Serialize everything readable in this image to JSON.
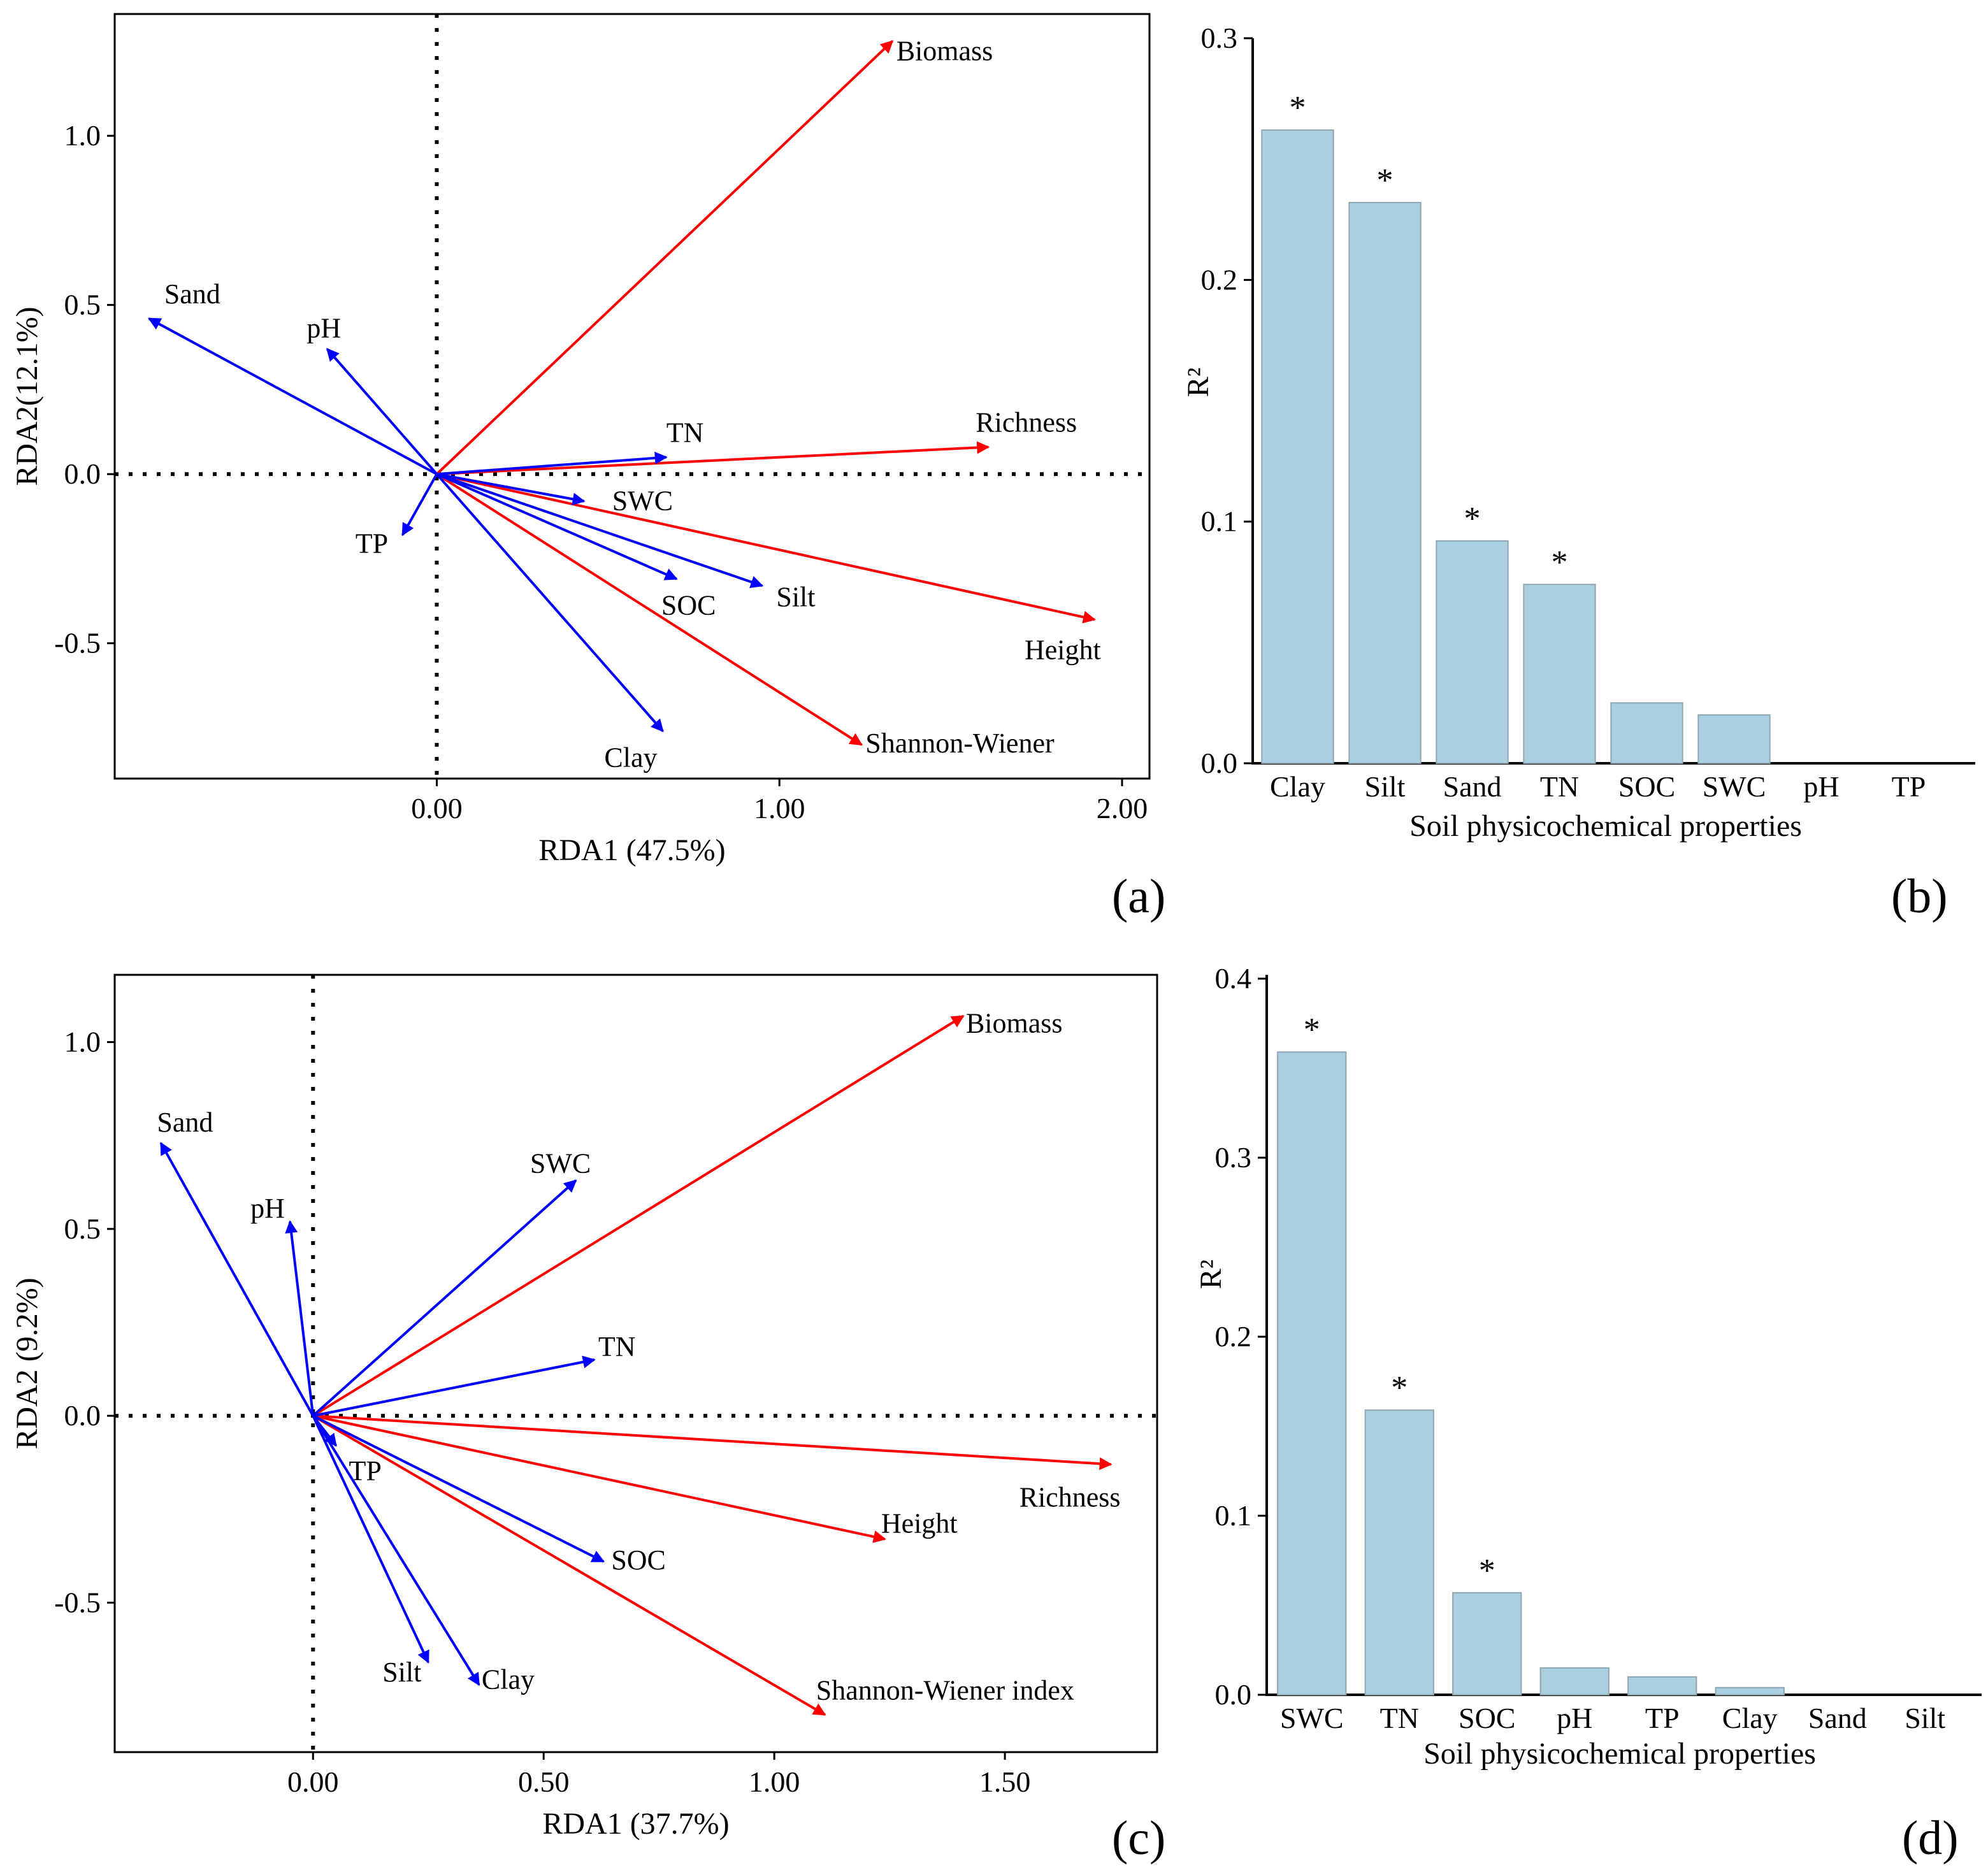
{
  "figure": {
    "panels": [
      {
        "id": "a",
        "letter": "(a)"
      },
      {
        "id": "b",
        "letter": "(b)"
      },
      {
        "id": "c",
        "letter": "(c)"
      },
      {
        "id": "d",
        "letter": "(d)"
      }
    ]
  },
  "chart_data": [
    {
      "id": "a",
      "type": "biplot",
      "xlabel": "RDA1 (47.5%)",
      "ylabel": "RDA2(12.1%)",
      "xlim": [
        -0.94,
        2.08
      ],
      "ylim": [
        -0.9,
        1.36
      ],
      "xticks": [
        0,
        1,
        2
      ],
      "xtick_labels": [
        "0.00",
        "1.00",
        "2.00"
      ],
      "yticks": [
        -0.5,
        0,
        0.5,
        1.0
      ],
      "ytick_labels": [
        "-0.5",
        "0.0",
        "0.5",
        "1.0"
      ],
      "colors": {
        "response": "#ff0000",
        "soil": "#0000ff"
      },
      "response_vectors": [
        {
          "label": "Biomass",
          "x": 1.33,
          "y": 1.28
        },
        {
          "label": "Richness",
          "x": 1.61,
          "y": 0.08
        },
        {
          "label": "Height",
          "x": 1.92,
          "y": -0.43
        },
        {
          "label": "Shannon-Wiener",
          "x": 1.24,
          "y": -0.8
        }
      ],
      "soil_vectors": [
        {
          "label": "Sand",
          "x": -0.84,
          "y": 0.46
        },
        {
          "label": "pH",
          "x": -0.32,
          "y": 0.37
        },
        {
          "label": "TN",
          "x": 0.67,
          "y": 0.05
        },
        {
          "label": "SWC",
          "x": 0.43,
          "y": -0.08
        },
        {
          "label": "TP",
          "x": -0.1,
          "y": -0.18
        },
        {
          "label": "SOC",
          "x": 0.7,
          "y": -0.31
        },
        {
          "label": "Silt",
          "x": 0.95,
          "y": -0.33
        },
        {
          "label": "Clay",
          "x": 0.66,
          "y": -0.76
        }
      ]
    },
    {
      "id": "b",
      "type": "bar",
      "xlabel": "Soil physicochemical properties",
      "ylabel": "R²",
      "ylim": [
        0,
        0.3
      ],
      "yticks": [
        0,
        0.1,
        0.2,
        0.3
      ],
      "ytick_labels": [
        "0.0",
        "0.1",
        "0.2",
        "0.3"
      ],
      "categories": [
        "Clay",
        "Silt",
        "Sand",
        "TN",
        "SOC",
        "SWC",
        "pH",
        "TP"
      ],
      "values": [
        0.262,
        0.232,
        0.092,
        0.074,
        0.025,
        0.02,
        0,
        0
      ],
      "significant": [
        "*",
        "*",
        "*",
        "*",
        "",
        "",
        "",
        ""
      ],
      "bar_color": "#a9cfe0"
    },
    {
      "id": "c",
      "type": "biplot",
      "xlabel": "RDA1 (37.7%)",
      "ylabel": "RDA2 (9.2%)",
      "xlim": [
        -0.43,
        1.83
      ],
      "ylim": [
        -0.9,
        1.18
      ],
      "xticks": [
        0,
        0.5,
        1.0,
        1.5
      ],
      "xtick_labels": [
        "0.00",
        "0.50",
        "1.00",
        "1.50"
      ],
      "yticks": [
        -0.5,
        0,
        0.5,
        1.0
      ],
      "ytick_labels": [
        "-0.5",
        "0.0",
        "0.5",
        "1.0"
      ],
      "colors": {
        "response": "#ff0000",
        "soil": "#0000ff"
      },
      "response_vectors": [
        {
          "label": "Biomass",
          "x": 1.41,
          "y": 1.07
        },
        {
          "label": "Richness",
          "x": 1.73,
          "y": -0.13
        },
        {
          "label": "Height",
          "x": 1.24,
          "y": -0.33
        },
        {
          "label": "Shannon-Wiener index",
          "x": 1.11,
          "y": -0.8
        }
      ],
      "soil_vectors": [
        {
          "label": "Sand",
          "x": -0.33,
          "y": 0.73
        },
        {
          "label": "pH",
          "x": -0.05,
          "y": 0.52
        },
        {
          "label": "SWC",
          "x": 0.57,
          "y": 0.63
        },
        {
          "label": "TN",
          "x": 0.61,
          "y": 0.15
        },
        {
          "label": "TP",
          "x": 0.05,
          "y": -0.08
        },
        {
          "label": "SOC",
          "x": 0.63,
          "y": -0.39
        },
        {
          "label": "Silt",
          "x": 0.25,
          "y": -0.66
        },
        {
          "label": "Clay",
          "x": 0.36,
          "y": -0.72
        }
      ]
    },
    {
      "id": "d",
      "type": "bar",
      "xlabel": "Soil physicochemical properties",
      "ylabel": "R²",
      "ylim": [
        0,
        0.4
      ],
      "yticks": [
        0,
        0.1,
        0.2,
        0.3,
        0.4
      ],
      "ytick_labels": [
        "0.0",
        "0.1",
        "0.2",
        "0.3",
        "0.4"
      ],
      "categories": [
        "SWC",
        "TN",
        "SOC",
        "pH",
        "TP",
        "Clay",
        "Sand",
        "Silt"
      ],
      "values": [
        0.359,
        0.159,
        0.057,
        0.015,
        0.01,
        0.004,
        0,
        0
      ],
      "significant": [
        "*",
        "*",
        "*",
        "",
        "",
        "",
        "",
        ""
      ],
      "bar_color": "#a9cfe0"
    }
  ]
}
